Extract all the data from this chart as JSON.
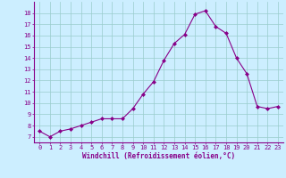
{
  "x": [
    0,
    1,
    2,
    3,
    4,
    5,
    6,
    7,
    8,
    9,
    10,
    11,
    12,
    13,
    14,
    15,
    16,
    17,
    18,
    19,
    20,
    21,
    22,
    23
  ],
  "y": [
    7.5,
    7.0,
    7.5,
    7.7,
    8.0,
    8.3,
    8.6,
    8.6,
    8.6,
    9.5,
    10.8,
    11.9,
    13.8,
    15.3,
    16.1,
    17.9,
    18.2,
    16.8,
    16.2,
    14.0,
    12.6,
    9.7,
    9.5,
    9.7
  ],
  "line_color": "#880088",
  "marker": "D",
  "marker_size": 2,
  "bg_color": "#cceeff",
  "grid_color": "#99cccc",
  "xlabel": "Windchill (Refroidissement éolien,°C)",
  "xlabel_color": "#880088",
  "tick_color": "#880088",
  "ylim": [
    6.5,
    19.0
  ],
  "xlim": [
    -0.5,
    23.5
  ],
  "yticks": [
    7,
    8,
    9,
    10,
    11,
    12,
    13,
    14,
    15,
    16,
    17,
    18
  ],
  "xticks": [
    0,
    1,
    2,
    3,
    4,
    5,
    6,
    7,
    8,
    9,
    10,
    11,
    12,
    13,
    14,
    15,
    16,
    17,
    18,
    19,
    20,
    21,
    22,
    23
  ],
  "tick_fontsize": 5,
  "xlabel_fontsize": 5.5,
  "line_width": 0.8
}
